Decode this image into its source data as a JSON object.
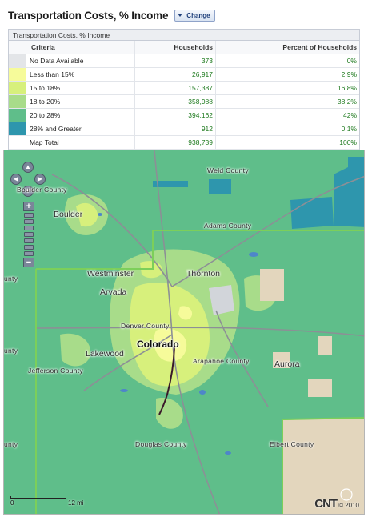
{
  "header": {
    "title": "Transportation Costs, % Income",
    "change_button": "Change"
  },
  "legend": {
    "caption": "Transportation Costs, % Income",
    "columns": [
      "Criteria",
      "Households",
      "Percent of Households"
    ],
    "rows": [
      {
        "label": "No Data Available",
        "households": "373",
        "percent": "0%",
        "color": "#e3e5e8"
      },
      {
        "label": "Less than 15%",
        "households": "26,917",
        "percent": "2.9%",
        "color": "#f6fb9a"
      },
      {
        "label": "15 to 18%",
        "households": "157,387",
        "percent": "16.8%",
        "color": "#d7f07c"
      },
      {
        "label": "18 to 20%",
        "households": "358,988",
        "percent": "38.2%",
        "color": "#a8dc8a"
      },
      {
        "label": "20 to 28%",
        "households": "394,162",
        "percent": "42%",
        "color": "#5fbe8a"
      },
      {
        "label": "28% and Greater",
        "households": "912",
        "percent": "0.1%",
        "color": "#2e96ad"
      },
      {
        "label": "Map Total",
        "households": "938,739",
        "percent": "100%",
        "color": "#ffffff"
      }
    ]
  },
  "map": {
    "labels": {
      "weld_county": "Weld County",
      "boulder_county": "Boulder County",
      "boulder": "Boulder",
      "adams_county": "Adams County",
      "westminster": "Westminster",
      "thornton": "Thornton",
      "arvada": "Arvada",
      "denver_county": "Denver County",
      "colorado": "Colorado",
      "lakewood": "Lakewood",
      "arapahoe_county": "Arapahoe County",
      "aurora": "Aurora",
      "jefferson_county": "Jefferson County",
      "douglas_county": "Douglas County",
      "elbert_county": "Elbert County",
      "edge_county_1": "unty",
      "edge_county_2": "unty",
      "edge_county_3": "unty"
    },
    "scale": {
      "start": "0",
      "end": "12 mi"
    },
    "brand": "CNT",
    "copyright": "© 2010"
  }
}
